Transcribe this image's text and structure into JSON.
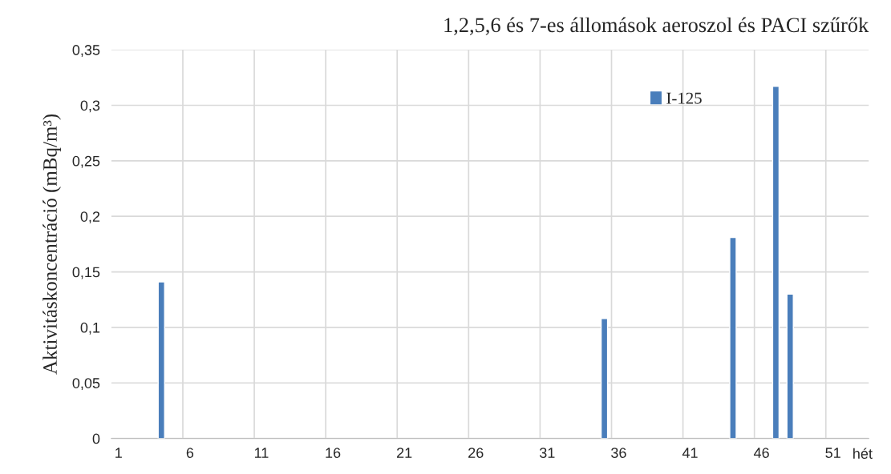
{
  "chart_data": {
    "type": "bar",
    "title": "1,2,5,6 és 7-es állomások aeroszol és PACI szűrők",
    "ylabel": "Aktivitáskoncentráció (mBq/m³)",
    "xlabel": "hét",
    "categories": [
      "1",
      null,
      null,
      null,
      null,
      "6",
      null,
      null,
      null,
      null,
      "11",
      null,
      null,
      null,
      null,
      "16",
      null,
      null,
      null,
      null,
      "21",
      null,
      null,
      null,
      null,
      "26",
      null,
      null,
      null,
      null,
      "31",
      null,
      null,
      null,
      null,
      "36",
      null,
      null,
      null,
      null,
      "41",
      null,
      null,
      null,
      null,
      "46",
      null,
      null,
      null,
      null,
      "51",
      null,
      null
    ],
    "series": [
      {
        "name": "I-125",
        "color": "#4a7ebb",
        "values": [
          null,
          null,
          null,
          0.141,
          null,
          null,
          null,
          null,
          null,
          null,
          null,
          null,
          null,
          null,
          null,
          null,
          null,
          null,
          null,
          null,
          null,
          null,
          null,
          null,
          null,
          null,
          null,
          null,
          null,
          null,
          null,
          null,
          null,
          null,
          0.108,
          null,
          null,
          null,
          null,
          null,
          null,
          null,
          null,
          0.181,
          null,
          null,
          0.317,
          0.13,
          null,
          null,
          null,
          null,
          null
        ]
      }
    ],
    "ylim": [
      0,
      0.35
    ],
    "yticks": [
      0,
      {
        "value": 0.05,
        "label": "0,05"
      },
      {
        "value": 0.1,
        "label": "0,1"
      },
      {
        "value": 0.15,
        "label": "0,15"
      },
      {
        "value": 0.2,
        "label": "0,2"
      },
      {
        "value": 0.25,
        "label": "0,25"
      },
      {
        "value": 0.3,
        "label": "0,3"
      },
      {
        "value": 0.35,
        "label": "0,35"
      }
    ],
    "grid": true,
    "legend": "top right"
  }
}
